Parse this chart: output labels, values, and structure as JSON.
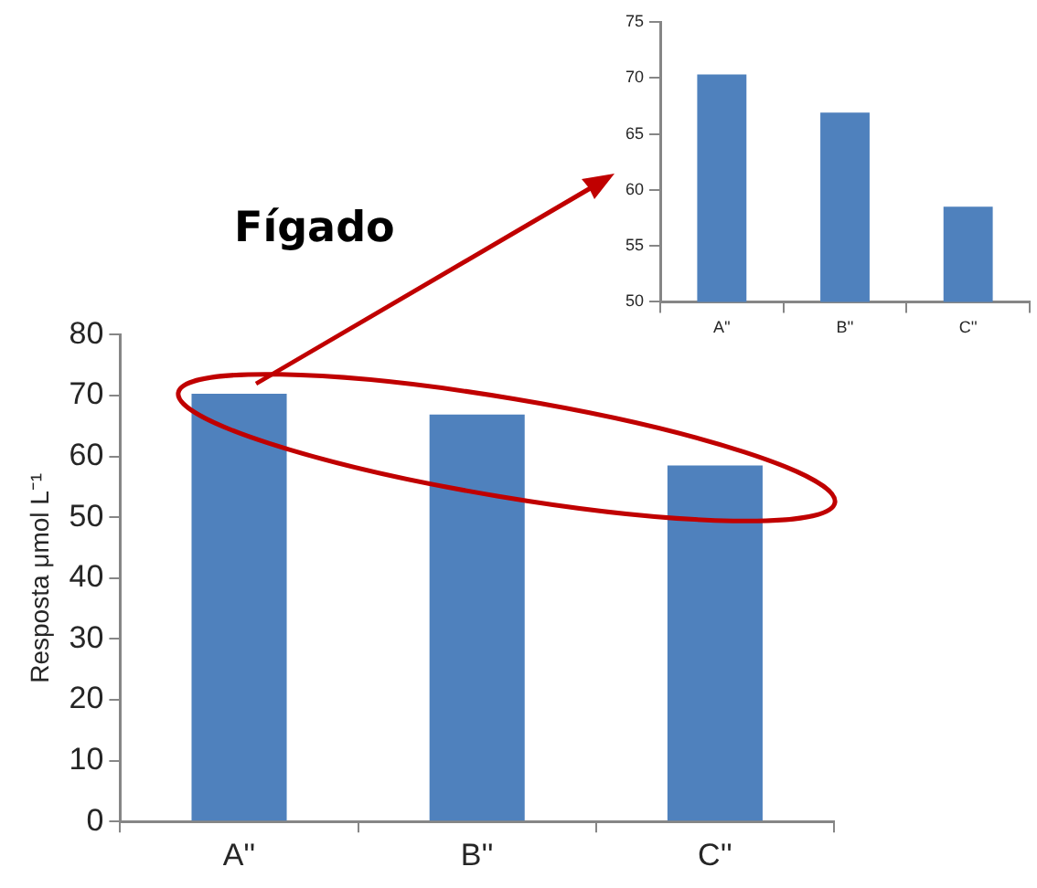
{
  "chart_data": [
    {
      "type": "bar",
      "ylabel": "Resposta μmol L⁻¹",
      "categories": [
        "A''",
        "B''",
        "C''"
      ],
      "values": [
        70.3,
        66.9,
        58.5
      ],
      "color": "#4f81bd",
      "ylim": [
        0,
        80
      ],
      "yticks": [
        0,
        10,
        20,
        30,
        40,
        50,
        60,
        70,
        80
      ],
      "annotations": [
        "Fígado"
      ]
    },
    {
      "type": "bar",
      "categories": [
        "A''",
        "B''",
        "C''"
      ],
      "values": [
        70.3,
        66.9,
        58.5
      ],
      "color": "#4f81bd",
      "ylim": [
        50,
        75
      ],
      "yticks": [
        50,
        55,
        60,
        65,
        70,
        75
      ]
    }
  ]
}
